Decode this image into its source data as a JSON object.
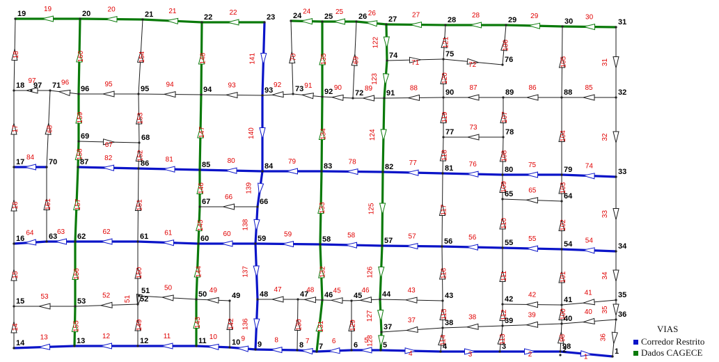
{
  "colors": {
    "corridor": "#0a14c8",
    "cagece": "#0a7a0a",
    "street": "#1a1a1a",
    "node_label": "#000000",
    "link_label": "#e00000"
  },
  "legend": {
    "title": "VIAS",
    "items": [
      {
        "label": "Corredor Restrito",
        "color": "#0a14c8"
      },
      {
        "label": "Dados CAGECE",
        "color": "#0a7a0a"
      }
    ]
  },
  "network": {
    "nodes": [
      "1",
      "2",
      "3",
      "4",
      "5",
      "6",
      "7",
      "8",
      "9",
      "10",
      "11",
      "12",
      "13",
      "14",
      "15",
      "16",
      "17",
      "18",
      "19",
      "20",
      "21",
      "22",
      "23",
      "24",
      "25",
      "26",
      "27",
      "28",
      "29",
      "30",
      "31",
      "32",
      "33",
      "34",
      "35",
      "36",
      "37",
      "38",
      "39",
      "40",
      "41",
      "42",
      "43",
      "44",
      "45",
      "46",
      "47",
      "48",
      "49",
      "50",
      "51",
      "52",
      "53",
      "54",
      "55",
      "56",
      "57",
      "58",
      "59",
      "60",
      "61",
      "62",
      "63",
      "64",
      "65",
      "66",
      "67",
      "68",
      "69",
      "70",
      "71",
      "72",
      "73",
      "74",
      "75",
      "76",
      "77",
      "78",
      "79",
      "80",
      "81",
      "82",
      "83",
      "84",
      "85",
      "86",
      "87",
      "88",
      "89",
      "90",
      "91",
      "92",
      "93",
      "94",
      "95",
      "96",
      "97",
      "98"
    ],
    "links": [
      {
        "id": "1",
        "from": "98",
        "to": "1",
        "type": "corridor"
      },
      {
        "id": "2",
        "from": "3",
        "to": "98",
        "type": "corridor"
      },
      {
        "id": "3",
        "from": "4",
        "to": "3",
        "type": "corridor"
      },
      {
        "id": "4",
        "from": "5",
        "to": "4",
        "type": "corridor"
      },
      {
        "id": "5",
        "from": "5",
        "to": "6",
        "type": "corridor"
      },
      {
        "id": "6",
        "from": "6",
        "to": "7",
        "type": "corridor"
      },
      {
        "id": "7",
        "from": "7",
        "to": "8",
        "type": "corridor"
      },
      {
        "id": "8",
        "from": "8",
        "to": "9",
        "type": "corridor"
      },
      {
        "id": "9",
        "from": "9",
        "to": "10",
        "type": "corridor"
      },
      {
        "id": "10",
        "from": "10",
        "to": "11",
        "type": "corridor"
      },
      {
        "id": "11",
        "from": "11",
        "to": "12",
        "type": "corridor"
      },
      {
        "id": "12",
        "from": "12",
        "to": "13",
        "type": "corridor"
      },
      {
        "id": "13",
        "from": "13",
        "to": "14",
        "type": "corridor"
      },
      {
        "id": "14",
        "from": "14",
        "to": "15",
        "type": "street"
      },
      {
        "id": "15",
        "from": "15",
        "to": "16",
        "type": "street"
      },
      {
        "id": "16",
        "from": "16",
        "to": "17",
        "type": "street"
      },
      {
        "id": "17",
        "from": "17",
        "to": "18",
        "type": "street"
      },
      {
        "id": "18",
        "from": "18",
        "to": "19",
        "type": "street"
      },
      {
        "id": "19",
        "from": "20",
        "to": "19",
        "type": "cagece"
      },
      {
        "id": "20",
        "from": "21",
        "to": "20",
        "type": "cagece"
      },
      {
        "id": "21",
        "from": "22",
        "to": "21",
        "type": "cagece"
      },
      {
        "id": "22",
        "from": "23",
        "to": "22",
        "type": "cagece"
      },
      {
        "id": "24",
        "from": "25",
        "to": "24",
        "type": "cagece"
      },
      {
        "id": "25",
        "from": "26",
        "to": "25",
        "type": "cagece"
      },
      {
        "id": "26",
        "from": "27",
        "to": "26",
        "type": "cagece"
      },
      {
        "id": "27",
        "from": "28",
        "to": "27",
        "type": "cagece"
      },
      {
        "id": "28",
        "from": "29",
        "to": "28",
        "type": "cagece"
      },
      {
        "id": "29",
        "from": "30",
        "to": "29",
        "type": "cagece"
      },
      {
        "id": "30",
        "from": "31",
        "to": "30",
        "type": "cagece"
      },
      {
        "id": "31",
        "from": "31",
        "to": "32",
        "type": "street"
      },
      {
        "id": "32",
        "from": "32",
        "to": "33",
        "type": "street"
      },
      {
        "id": "33",
        "from": "33",
        "to": "34",
        "type": "street"
      },
      {
        "id": "34",
        "from": "34",
        "to": "35",
        "type": "street"
      },
      {
        "id": "35",
        "from": "35",
        "to": "36",
        "type": "street"
      },
      {
        "id": "36",
        "from": "36",
        "to": "1",
        "type": "street"
      },
      {
        "id": "37",
        "from": "38",
        "to": "37",
        "type": "street"
      },
      {
        "id": "38",
        "from": "39",
        "to": "38",
        "type": "street"
      },
      {
        "id": "39",
        "from": "40",
        "to": "39",
        "type": "street"
      },
      {
        "id": "40",
        "from": "36",
        "to": "40",
        "type": "street"
      },
      {
        "id": "41",
        "from": "35",
        "to": "41",
        "type": "street"
      },
      {
        "id": "42",
        "from": "41",
        "to": "42",
        "type": "street"
      },
      {
        "id": "43",
        "from": "43",
        "to": "44",
        "type": "street"
      },
      {
        "id": "45",
        "from": "45",
        "to": "46",
        "type": "street"
      },
      {
        "id": "46",
        "from": "44",
        "to": "45",
        "type": "street"
      },
      {
        "id": "47",
        "from": "47",
        "to": "48",
        "type": "street"
      },
      {
        "id": "48",
        "from": "46",
        "to": "47",
        "type": "street"
      },
      {
        "id": "49",
        "from": "49",
        "to": "50",
        "type": "street"
      },
      {
        "id": "50",
        "from": "50",
        "to": "51",
        "type": "street"
      },
      {
        "id": "51",
        "from": "51",
        "to": "52",
        "type": "street"
      },
      {
        "id": "52",
        "from": "52",
        "to": "53",
        "type": "street"
      },
      {
        "id": "53",
        "from": "53",
        "to": "15",
        "type": "street"
      },
      {
        "id": "54",
        "from": "34",
        "to": "54",
        "type": "corridor"
      },
      {
        "id": "55",
        "from": "54",
        "to": "55",
        "type": "corridor"
      },
      {
        "id": "56",
        "from": "55",
        "to": "56",
        "type": "corridor"
      },
      {
        "id": "57",
        "from": "56",
        "to": "57",
        "type": "corridor"
      },
      {
        "id": "58",
        "from": "57",
        "to": "58",
        "type": "corridor"
      },
      {
        "id": "59",
        "from": "58",
        "to": "59",
        "type": "corridor"
      },
      {
        "id": "60",
        "from": "59",
        "to": "60",
        "type": "corridor"
      },
      {
        "id": "61",
        "from": "60",
        "to": "61",
        "type": "corridor"
      },
      {
        "id": "62",
        "from": "61",
        "to": "62",
        "type": "corridor"
      },
      {
        "id": "63",
        "from": "62",
        "to": "63",
        "type": "corridor"
      },
      {
        "id": "64",
        "from": "63",
        "to": "16",
        "type": "corridor"
      },
      {
        "id": "65",
        "from": "64",
        "to": "65",
        "type": "street"
      },
      {
        "id": "66",
        "from": "66",
        "to": "67",
        "type": "street"
      },
      {
        "id": "67",
        "from": "69",
        "to": "68",
        "type": "street"
      },
      {
        "id": "68",
        "from": "70",
        "to": "71",
        "type": "street"
      },
      {
        "id": "69",
        "from": "72",
        "to": "26",
        "type": "street"
      },
      {
        "id": "70",
        "from": "73",
        "to": "24",
        "type": "street"
      },
      {
        "id": "71",
        "from": "74",
        "to": "75",
        "type": "street"
      },
      {
        "id": "72",
        "from": "75",
        "to": "76",
        "type": "street"
      },
      {
        "id": "73",
        "from": "78",
        "to": "77",
        "type": "street"
      },
      {
        "id": "74",
        "from": "33",
        "to": "79",
        "type": "corridor"
      },
      {
        "id": "75",
        "from": "79",
        "to": "80",
        "type": "corridor"
      },
      {
        "id": "76",
        "from": "80",
        "to": "81",
        "type": "corridor"
      },
      {
        "id": "77",
        "from": "81",
        "to": "82",
        "type": "corridor"
      },
      {
        "id": "78",
        "from": "82",
        "to": "83",
        "type": "corridor"
      },
      {
        "id": "79",
        "from": "83",
        "to": "84",
        "type": "corridor"
      },
      {
        "id": "80",
        "from": "84",
        "to": "85",
        "type": "corridor"
      },
      {
        "id": "81",
        "from": "85",
        "to": "86",
        "type": "corridor"
      },
      {
        "id": "82",
        "from": "86",
        "to": "87",
        "type": "corridor"
      },
      {
        "id": "84",
        "from": "70",
        "to": "17",
        "type": "corridor"
      },
      {
        "id": "85",
        "from": "32",
        "to": "88",
        "type": "street"
      },
      {
        "id": "86",
        "from": "88",
        "to": "89",
        "type": "street"
      },
      {
        "id": "87",
        "from": "89",
        "to": "90",
        "type": "street"
      },
      {
        "id": "88",
        "from": "90",
        "to": "91",
        "type": "street"
      },
      {
        "id": "89",
        "from": "91",
        "to": "72",
        "type": "street"
      },
      {
        "id": "90",
        "from": "72",
        "to": "92",
        "type": "street"
      },
      {
        "id": "91",
        "from": "92",
        "to": "73",
        "type": "street"
      },
      {
        "id": "92",
        "from": "73",
        "to": "93",
        "type": "street"
      },
      {
        "id": "93",
        "from": "93",
        "to": "94",
        "type": "street"
      },
      {
        "id": "94",
        "from": "94",
        "to": "95",
        "type": "street"
      },
      {
        "id": "95",
        "from": "95",
        "to": "96",
        "type": "street"
      },
      {
        "id": "96",
        "from": "96",
        "to": "71",
        "type": "street"
      },
      {
        "id": "97",
        "from": "71",
        "to": "18",
        "type": "street"
      },
      {
        "id": "98",
        "from": "98",
        "to": "40",
        "type": "street"
      },
      {
        "id": "100",
        "from": "40",
        "to": "41",
        "type": "street"
      },
      {
        "id": "101",
        "from": "41",
        "to": "54",
        "type": "street"
      },
      {
        "id": "102",
        "from": "54",
        "to": "64",
        "type": "street"
      },
      {
        "id": "103",
        "from": "64",
        "to": "79",
        "type": "street"
      },
      {
        "id": "104",
        "from": "79",
        "to": "88",
        "type": "street"
      },
      {
        "id": "105",
        "from": "88",
        "to": "30",
        "type": "street"
      },
      {
        "id": "106",
        "from": "76",
        "to": "29",
        "type": "street"
      },
      {
        "id": "107",
        "from": "78",
        "to": "89",
        "type": "street"
      },
      {
        "id": "108",
        "from": "80",
        "to": "78",
        "type": "street"
      },
      {
        "id": "109",
        "from": "65",
        "to": "80",
        "type": "street"
      },
      {
        "id": "110",
        "from": "55",
        "to": "65",
        "type": "street"
      },
      {
        "id": "111",
        "from": "42",
        "to": "55",
        "type": "street"
      },
      {
        "id": "112",
        "from": "39",
        "to": "42",
        "type": "street"
      },
      {
        "id": "113",
        "from": "3",
        "to": "39",
        "type": "street"
      },
      {
        "id": "114",
        "from": "4",
        "to": "38",
        "type": "street"
      },
      {
        "id": "115",
        "from": "38",
        "to": "43",
        "type": "street"
      },
      {
        "id": "116",
        "from": "43",
        "to": "56",
        "type": "street"
      },
      {
        "id": "117",
        "from": "56",
        "to": "81",
        "type": "street"
      },
      {
        "id": "118",
        "from": "81",
        "to": "77",
        "type": "street"
      },
      {
        "id": "119",
        "from": "77",
        "to": "90",
        "type": "street"
      },
      {
        "id": "120",
        "from": "90",
        "to": "75",
        "type": "street"
      },
      {
        "id": "121",
        "from": "75",
        "to": "28",
        "type": "street"
      },
      {
        "id": "122",
        "from": "27",
        "to": "74",
        "type": "cagece"
      },
      {
        "id": "123",
        "from": "74",
        "to": "91",
        "type": "cagece"
      },
      {
        "id": "124",
        "from": "91",
        "to": "82",
        "type": "cagece"
      },
      {
        "id": "125",
        "from": "82",
        "to": "57",
        "type": "cagece"
      },
      {
        "id": "126",
        "from": "57",
        "to": "44",
        "type": "cagece"
      },
      {
        "id": "127",
        "from": "44",
        "to": "37",
        "type": "cagece"
      },
      {
        "id": "128",
        "from": "37",
        "to": "5",
        "type": "cagece"
      },
      {
        "id": "129",
        "from": "6",
        "to": "45",
        "type": "street"
      },
      {
        "id": "130",
        "from": "8",
        "to": "47",
        "type": "street"
      },
      {
        "id": "131",
        "from": "7",
        "to": "46",
        "type": "cagece"
      },
      {
        "id": "132",
        "from": "46",
        "to": "58",
        "type": "cagece"
      },
      {
        "id": "133",
        "from": "58",
        "to": "83",
        "type": "cagece"
      },
      {
        "id": "134",
        "from": "83",
        "to": "92",
        "type": "cagece"
      },
      {
        "id": "135",
        "from": "92",
        "to": "25",
        "type": "cagece"
      },
      {
        "id": "136",
        "from": "48",
        "to": "9",
        "type": "corridor"
      },
      {
        "id": "137",
        "from": "59",
        "to": "48",
        "type": "corridor"
      },
      {
        "id": "138",
        "from": "66",
        "to": "59",
        "type": "corridor"
      },
      {
        "id": "139",
        "from": "84",
        "to": "66",
        "type": "corridor"
      },
      {
        "id": "140",
        "from": "93",
        "to": "84",
        "type": "corridor"
      },
      {
        "id": "141",
        "from": "23",
        "to": "93",
        "type": "corridor"
      },
      {
        "id": "142",
        "from": "10",
        "to": "49",
        "type": "street"
      },
      {
        "id": "143",
        "from": "11",
        "to": "50",
        "type": "cagece"
      },
      {
        "id": "144",
        "from": "50",
        "to": "60",
        "type": "cagece"
      },
      {
        "id": "145",
        "from": "60",
        "to": "67",
        "type": "cagece"
      },
      {
        "id": "146",
        "from": "67",
        "to": "85",
        "type": "cagece"
      },
      {
        "id": "147",
        "from": "85",
        "to": "94",
        "type": "cagece"
      },
      {
        "id": "148",
        "from": "94",
        "to": "22",
        "type": "cagece"
      },
      {
        "id": "149",
        "from": "12",
        "to": "52",
        "type": "street"
      },
      {
        "id": "150",
        "from": "52",
        "to": "61",
        "type": "street"
      },
      {
        "id": "151",
        "from": "61",
        "to": "86",
        "type": "street"
      },
      {
        "id": "152",
        "from": "86",
        "to": "68",
        "type": "street"
      },
      {
        "id": "153",
        "from": "68",
        "to": "95",
        "type": "street"
      },
      {
        "id": "154",
        "from": "95",
        "to": "21",
        "type": "street"
      },
      {
        "id": "155",
        "from": "13",
        "to": "53",
        "type": "cagece"
      },
      {
        "id": "156",
        "from": "53",
        "to": "62",
        "type": "cagece"
      },
      {
        "id": "157",
        "from": "62",
        "to": "87",
        "type": "cagece"
      },
      {
        "id": "158",
        "from": "87",
        "to": "69",
        "type": "cagece"
      },
      {
        "id": "159",
        "from": "69",
        "to": "96",
        "type": "cagece"
      },
      {
        "id": "160",
        "from": "96",
        "to": "20",
        "type": "cagece"
      },
      {
        "id": "161",
        "from": "63",
        "to": "70",
        "type": "street"
      }
    ]
  }
}
